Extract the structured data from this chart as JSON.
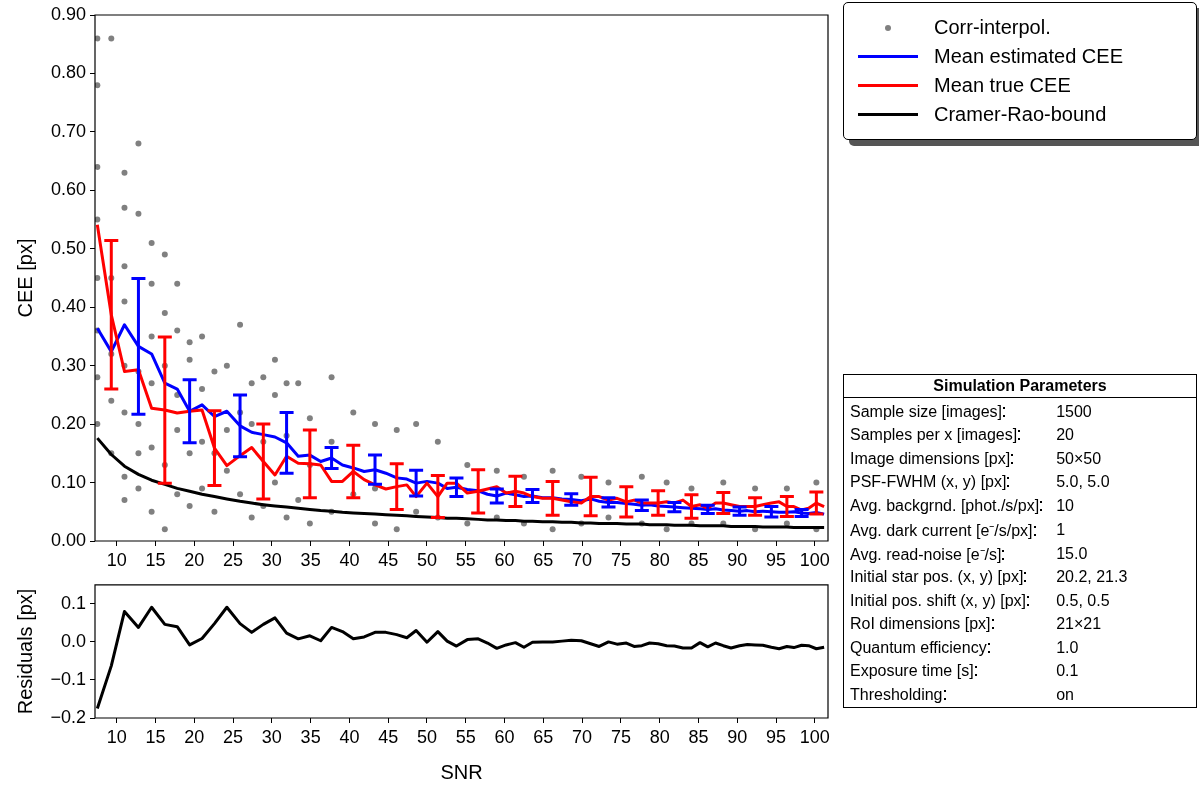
{
  "chart_data": [
    {
      "type": "line",
      "ylabel": "CEE [px]",
      "legend": "top right",
      "xlim": [
        7.2,
        101.7
      ],
      "xticks": [
        10,
        15,
        20,
        25,
        30,
        35,
        40,
        45,
        50,
        55,
        60,
        65,
        70,
        75,
        80,
        85,
        90,
        95,
        100
      ],
      "ylim": [
        0,
        0.9
      ],
      "yticks": [
        {
          "value": 0,
          "label": "0.00"
        },
        {
          "value": 0.1,
          "label": "0.10"
        },
        {
          "value": 0.2,
          "label": "0.20"
        },
        {
          "value": 0.3,
          "label": "0.30"
        },
        {
          "value": 0.4,
          "label": "0.40"
        },
        {
          "value": 0.5,
          "label": "0.50"
        },
        {
          "value": 0.6,
          "label": "0.60"
        },
        {
          "value": 0.7,
          "label": "0.70"
        },
        {
          "value": 0.8,
          "label": "0.80"
        },
        {
          "value": 0.9,
          "label": "0.90"
        }
      ],
      "x": [
        7.5,
        9.3,
        11.0,
        12.8,
        14.5,
        16.2,
        17.8,
        19.4,
        21.0,
        22.6,
        24.2,
        25.9,
        27.4,
        28.9,
        30.4,
        31.9,
        33.4,
        34.9,
        36.3,
        37.7,
        39.1,
        40.5,
        41.9,
        43.3,
        44.7,
        46.1,
        47.4,
        48.6,
        50.0,
        51.4,
        52.6,
        53.8,
        55.2,
        56.6,
        57.8,
        59.0,
        60.2,
        61.4,
        62.5,
        63.6,
        64.9,
        66.2,
        67.4,
        68.6,
        69.9,
        71.1,
        72.2,
        73.4,
        74.5,
        75.7,
        76.7,
        77.7,
        78.7,
        79.8,
        80.9,
        81.9,
        83.0,
        84.1,
        85.2,
        86.2,
        87.2,
        88.2,
        89.2,
        90.3,
        91.3,
        92.3,
        93.3,
        94.4,
        95.4,
        96.4,
        97.3,
        98.3,
        99.2,
        100.2,
        101.2
      ],
      "series": [
        {
          "name": "Corr-interpol.",
          "type": "scatter",
          "marker": "circle",
          "color": "#808080",
          "x": [
            7.5,
            7.5,
            7.5,
            7.5,
            7.5,
            7.5,
            7.5,
            7.5,
            9.3,
            9.3,
            9.3,
            9.3,
            9.3,
            11.0,
            11.0,
            11.0,
            11.0,
            11.0,
            11.0,
            11.0,
            11.0,
            12.8,
            12.8,
            12.8,
            12.8,
            12.8,
            12.8,
            14.5,
            14.5,
            14.5,
            14.5,
            14.5,
            14.5,
            16.2,
            16.2,
            16.2,
            16.2,
            16.2,
            17.8,
            17.8,
            17.8,
            17.8,
            17.8,
            19.4,
            19.4,
            19.4,
            19.4,
            21.0,
            21.0,
            21.0,
            21.0,
            22.6,
            22.6,
            22.6,
            24.2,
            24.2,
            24.2,
            25.9,
            25.9,
            25.9,
            27.4,
            27.4,
            27.4,
            28.9,
            28.9,
            28.9,
            30.4,
            30.4,
            30.4,
            31.9,
            31.9,
            31.9,
            33.4,
            33.4,
            34.9,
            34.9,
            34.9,
            37.7,
            37.7,
            37.7,
            40.5,
            40.5,
            43.3,
            43.3,
            43.3,
            46.1,
            46.1,
            48.6,
            48.6,
            51.4,
            51.4,
            55.2,
            55.2,
            59.0,
            59.0,
            62.5,
            62.5,
            66.2,
            66.2,
            69.9,
            69.9,
            73.4,
            73.4,
            77.7,
            77.7,
            80.9,
            80.9,
            84.1,
            84.1,
            88.2,
            88.2,
            92.3,
            92.3,
            96.4,
            96.4,
            100.2,
            100.2
          ],
          "values": [
            0.86,
            0.78,
            0.64,
            0.55,
            0.45,
            0.36,
            0.28,
            0.2,
            0.86,
            0.45,
            0.32,
            0.24,
            0.15,
            0.63,
            0.57,
            0.47,
            0.41,
            0.3,
            0.22,
            0.11,
            0.07,
            0.68,
            0.56,
            0.29,
            0.2,
            0.15,
            0.09,
            0.51,
            0.44,
            0.35,
            0.27,
            0.16,
            0.05,
            0.49,
            0.39,
            0.3,
            0.13,
            0.02,
            0.44,
            0.36,
            0.25,
            0.19,
            0.08,
            0.34,
            0.31,
            0.15,
            0.06,
            0.35,
            0.26,
            0.17,
            0.09,
            0.29,
            0.15,
            0.05,
            0.3,
            0.19,
            0.12,
            0.37,
            0.22,
            0.08,
            0.27,
            0.2,
            0.04,
            0.28,
            0.17,
            0.06,
            0.31,
            0.25,
            0.1,
            0.27,
            0.18,
            0.04,
            0.27,
            0.07,
            0.21,
            0.13,
            0.03,
            0.28,
            0.17,
            0.05,
            0.22,
            0.08,
            0.2,
            0.09,
            0.03,
            0.19,
            0.02,
            0.2,
            0.05,
            0.17,
            0.04,
            0.13,
            0.03,
            0.12,
            0.04,
            0.11,
            0.03,
            0.12,
            0.02,
            0.11,
            0.03,
            0.1,
            0.04,
            0.11,
            0.03,
            0.1,
            0.02,
            0.09,
            0.03,
            0.1,
            0.03,
            0.09,
            0.02,
            0.09,
            0.03,
            0.1,
            0.02
          ]
        },
        {
          "name": "Mean estimated CEE",
          "type": "line",
          "marker": "none",
          "color": "#0000ff",
          "values": [
            0.364,
            0.324,
            0.37,
            0.333,
            0.32,
            0.27,
            0.26,
            0.222,
            0.233,
            0.213,
            0.222,
            0.197,
            0.186,
            0.182,
            0.178,
            0.168,
            0.145,
            0.147,
            0.136,
            0.142,
            0.13,
            0.125,
            0.119,
            0.122,
            0.116,
            0.108,
            0.106,
            0.099,
            0.102,
            0.099,
            0.09,
            0.092,
            0.088,
            0.086,
            0.08,
            0.077,
            0.082,
            0.079,
            0.076,
            0.077,
            0.074,
            0.074,
            0.072,
            0.071,
            0.069,
            0.072,
            0.068,
            0.066,
            0.066,
            0.064,
            0.063,
            0.061,
            0.062,
            0.06,
            0.059,
            0.058,
            0.057,
            0.056,
            0.055,
            0.054,
            0.055,
            0.053,
            0.052,
            0.051,
            0.052,
            0.05,
            0.051,
            0.05,
            0.049,
            0.049,
            0.05,
            0.048,
            0.047,
            0.049,
            0.046
          ],
          "errors": [
            null,
            null,
            null,
            0.116,
            null,
            null,
            null,
            0.054,
            null,
            null,
            null,
            0.053,
            null,
            null,
            null,
            0.052,
            null,
            null,
            null,
            0.018,
            null,
            null,
            null,
            0.025,
            null,
            null,
            null,
            0.022,
            null,
            null,
            null,
            0.016,
            null,
            null,
            null,
            0.012,
            null,
            null,
            null,
            0.011,
            null,
            null,
            null,
            0.01,
            null,
            null,
            null,
            0.008,
            null,
            null,
            null,
            0.009,
            null,
            null,
            null,
            0.008,
            null,
            null,
            null,
            0.007,
            null,
            null,
            null,
            0.007,
            null,
            null,
            null,
            0.009,
            null,
            null,
            null,
            0.006,
            null,
            null,
            null
          ]
        },
        {
          "name": "Mean true CEE",
          "type": "line",
          "marker": "none",
          "color": "#ff0000",
          "values": [
            0.541,
            0.387,
            0.29,
            0.293,
            0.227,
            0.224,
            0.219,
            0.222,
            0.224,
            0.159,
            0.129,
            0.146,
            0.16,
            0.136,
            0.113,
            0.145,
            0.133,
            0.132,
            0.13,
            0.102,
            0.102,
            0.119,
            0.105,
            0.096,
            0.089,
            0.093,
            0.096,
            0.076,
            0.099,
            0.076,
            0.099,
            0.099,
            0.082,
            0.085,
            0.089,
            0.093,
            0.082,
            0.085,
            0.082,
            0.076,
            0.073,
            0.073,
            0.07,
            0.067,
            0.065,
            0.076,
            0.076,
            0.07,
            0.073,
            0.067,
            0.07,
            0.065,
            0.065,
            0.065,
            0.067,
            0.065,
            0.07,
            0.059,
            0.062,
            0.056,
            0.065,
            0.065,
            0.062,
            0.059,
            0.059,
            0.059,
            0.062,
            0.065,
            0.067,
            0.059,
            0.059,
            0.053,
            0.056,
            0.065,
            0.059
          ],
          "errors": [
            null,
            0.127,
            null,
            null,
            null,
            0.125,
            null,
            null,
            null,
            0.064,
            null,
            null,
            null,
            0.064,
            null,
            null,
            null,
            0.058,
            null,
            null,
            null,
            0.045,
            null,
            null,
            null,
            0.039,
            null,
            null,
            null,
            0.036,
            null,
            null,
            null,
            0.037,
            null,
            null,
            null,
            0.026,
            null,
            null,
            null,
            0.029,
            null,
            null,
            null,
            0.033,
            null,
            null,
            null,
            0.026,
            null,
            null,
            null,
            0.021,
            null,
            null,
            null,
            0.02,
            null,
            null,
            null,
            0.018,
            null,
            null,
            null,
            0.015,
            null,
            null,
            null,
            0.017,
            null,
            null,
            null,
            0.019,
            null
          ]
        },
        {
          "name": "Cramer-Rao-bound",
          "type": "line",
          "marker": "none",
          "color": "#000000",
          "values": [
            0.176,
            0.148,
            0.128,
            0.114,
            0.104,
            0.097,
            0.09,
            0.085,
            0.08,
            0.076,
            0.072,
            0.068,
            0.065,
            0.062,
            0.06,
            0.058,
            0.056,
            0.054,
            0.052,
            0.051,
            0.049,
            0.048,
            0.047,
            0.046,
            0.045,
            0.044,
            0.043,
            0.042,
            0.041,
            0.04,
            0.039,
            0.039,
            0.038,
            0.037,
            0.036,
            0.036,
            0.035,
            0.035,
            0.034,
            0.034,
            0.033,
            0.033,
            0.032,
            0.032,
            0.031,
            0.031,
            0.03,
            0.03,
            0.03,
            0.029,
            0.029,
            0.029,
            0.028,
            0.028,
            0.028,
            0.027,
            0.027,
            0.027,
            0.026,
            0.026,
            0.026,
            0.026,
            0.025,
            0.025,
            0.025,
            0.025,
            0.024,
            0.024,
            0.024,
            0.024,
            0.023,
            0.023,
            0.023,
            0.023,
            0.023
          ]
        }
      ]
    },
    {
      "type": "line",
      "xlabel": "SNR",
      "ylabel": "Residuals [px]",
      "color": "#000000",
      "xlim": [
        7.2,
        101.7
      ],
      "xticks": [
        10,
        15,
        20,
        25,
        30,
        35,
        40,
        45,
        50,
        55,
        60,
        65,
        70,
        75,
        80,
        85,
        90,
        95,
        100
      ],
      "ylim": [
        -0.2,
        0.15
      ],
      "yticks": [
        {
          "value": -0.2,
          "label": "−0.2"
        },
        {
          "value": -0.1,
          "label": "−0.1"
        },
        {
          "value": 0,
          "label": "0.0"
        },
        {
          "value": 0.1,
          "label": "0.1"
        }
      ],
      "x": [
        7.5,
        9.3,
        11.0,
        12.8,
        14.5,
        16.2,
        17.8,
        19.4,
        21.0,
        22.6,
        24.2,
        25.9,
        27.4,
        28.9,
        30.4,
        31.9,
        33.4,
        34.9,
        36.3,
        37.7,
        39.1,
        40.5,
        41.9,
        43.3,
        44.7,
        46.1,
        47.4,
        48.6,
        50.0,
        51.4,
        52.6,
        53.8,
        55.2,
        56.6,
        57.8,
        59.0,
        60.2,
        61.4,
        62.5,
        63.6,
        64.9,
        66.2,
        67.4,
        68.6,
        69.9,
        71.1,
        72.2,
        73.4,
        74.5,
        75.7,
        76.7,
        77.7,
        78.7,
        79.8,
        80.9,
        81.9,
        83.0,
        84.1,
        85.2,
        86.2,
        87.2,
        88.2,
        89.2,
        90.3,
        91.3,
        92.3,
        93.3,
        94.4,
        95.4,
        96.4,
        97.3,
        98.3,
        99.2,
        100.2,
        101.2
      ],
      "values": [
        -0.175,
        -0.063,
        0.08,
        0.038,
        0.091,
        0.046,
        0.04,
        -0.008,
        0.009,
        0.048,
        0.091,
        0.048,
        0.025,
        0.046,
        0.063,
        0.023,
        0.008,
        0.016,
        0.003,
        0.038,
        0.027,
        0.008,
        0.013,
        0.025,
        0.025,
        0.019,
        0.011,
        0.03,
        -0.001,
        0.027,
        0.002,
        -0.011,
        0.006,
        0.008,
        -0.003,
        -0.017,
        -0.008,
        -0.002,
        -0.014,
        -0.001,
        0.0,
        0.0,
        0.002,
        0.004,
        0.003,
        -0.005,
        -0.012,
        0.0,
        -0.006,
        -0.003,
        -0.012,
        -0.01,
        -0.003,
        -0.005,
        -0.01,
        -0.011,
        -0.016,
        -0.016,
        -0.002,
        -0.013,
        -0.003,
        -0.01,
        -0.016,
        -0.01,
        -0.007,
        -0.008,
        -0.009,
        -0.014,
        -0.018,
        -0.012,
        -0.015,
        -0.009,
        -0.01,
        -0.018,
        -0.014
      ]
    },
    {
      "type": "other",
      "title": "Simulation Parameters",
      "categories": [
        "Sample size [images]",
        "Samples per x [images]",
        "Image dimensions [px]",
        "PSF-FWHM (x, y) [px]",
        "Avg. backgrnd. [phot./s/px]",
        "Avg. dark current [e⁻/s/px]",
        "Avg. read-noise [e⁻/s]",
        "Initial star pos. (x, y) [px]",
        "Initial pos. shift (x, y) [px]",
        "RoI dimensions [px]",
        "Quantum efficiency",
        "Exposure time [s]",
        "Thresholding"
      ],
      "value_labels": [
        "1500",
        "20",
        "50×50",
        "5.0, 5.0",
        "10",
        "1",
        "15.0",
        "20.2, 21.3",
        "0.5, 0.5",
        "21×21",
        "1.0",
        "0.1",
        "on"
      ]
    }
  ]
}
